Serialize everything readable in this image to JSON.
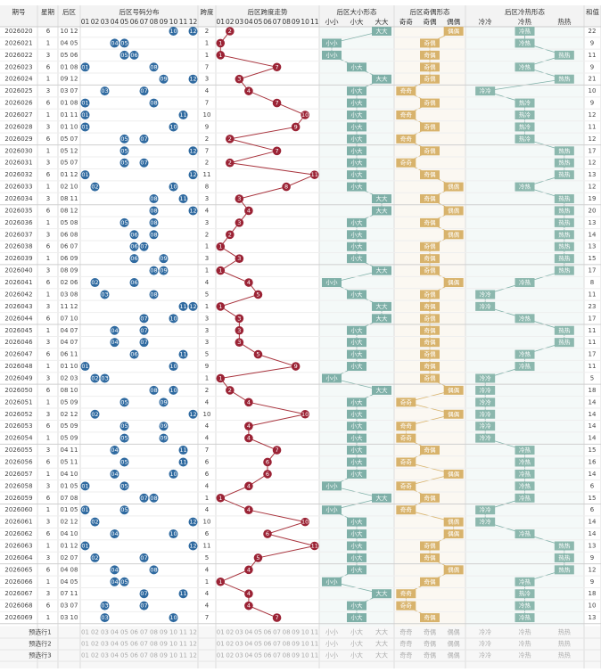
{
  "header": {
    "row1": [
      "期号",
      "星期",
      "后区",
      "后区号码分布",
      "跨度",
      "后区跨度走势",
      "后区大小形态",
      "后区奇偶形态",
      "后区冷热形态",
      "和值"
    ],
    "dist_cols": [
      "01",
      "02",
      "03",
      "04",
      "05",
      "06",
      "07",
      "08",
      "09",
      "10",
      "11",
      "12"
    ],
    "span_cols": [
      "01",
      "02",
      "03",
      "04",
      "05",
      "06",
      "07",
      "08",
      "09",
      "10",
      "11"
    ],
    "size_cols": [
      "小小",
      "小大",
      "大大"
    ],
    "parity_cols": [
      "奇奇",
      "奇偶",
      "偶偶"
    ],
    "temp_cols": [
      "冷冷",
      "冷热",
      "热热"
    ]
  },
  "rows": [
    {
      "period": "2026020",
      "weekday": 6,
      "back": [
        "10",
        "12"
      ],
      "span": 2,
      "size": "大大",
      "parity": "偶偶",
      "temp": "冷热",
      "sum": 22
    },
    {
      "period": "2026021",
      "weekday": 1,
      "back": [
        "04",
        "05"
      ],
      "span": 1,
      "size": "小小",
      "parity": "奇偶",
      "temp": "冷热",
      "sum": 9
    },
    {
      "period": "2026022",
      "weekday": 3,
      "back": [
        "05",
        "06"
      ],
      "span": 1,
      "size": "小小",
      "parity": "奇偶",
      "temp": "热热",
      "sum": 11
    },
    {
      "period": "2026023",
      "weekday": 6,
      "back": [
        "01",
        "08"
      ],
      "span": 7,
      "size": "小大",
      "parity": "奇偶",
      "temp": "冷热",
      "sum": 9
    },
    {
      "period": "2026024",
      "weekday": 1,
      "back": [
        "09",
        "12"
      ],
      "span": 3,
      "size": "大大",
      "parity": "奇偶",
      "temp": "热热",
      "sum": 21
    },
    {
      "period": "2026025",
      "weekday": 3,
      "back": [
        "03",
        "07"
      ],
      "span": 4,
      "size": "小大",
      "parity": "奇奇",
      "temp": "冷冷",
      "sum": 10
    },
    {
      "period": "2026026",
      "weekday": 6,
      "back": [
        "01",
        "08"
      ],
      "span": 7,
      "size": "小大",
      "parity": "奇偶",
      "temp": "热冷",
      "sum": 9
    },
    {
      "period": "2026027",
      "weekday": 1,
      "back": [
        "01",
        "11"
      ],
      "span": 10,
      "size": "小大",
      "parity": "奇奇",
      "temp": "热冷",
      "sum": 12
    },
    {
      "period": "2026028",
      "weekday": 3,
      "back": [
        "01",
        "10"
      ],
      "span": 9,
      "size": "小大",
      "parity": "奇偶",
      "temp": "热冷",
      "sum": 11
    },
    {
      "period": "2026029",
      "weekday": 6,
      "back": [
        "05",
        "07"
      ],
      "span": 2,
      "size": "小大",
      "parity": "奇奇",
      "temp": "热冷",
      "sum": 12
    },
    {
      "period": "2026030",
      "weekday": 1,
      "back": [
        "05",
        "12"
      ],
      "span": 7,
      "size": "小大",
      "parity": "奇偶",
      "temp": "热热",
      "sum": 17
    },
    {
      "period": "2026031",
      "weekday": 3,
      "back": [
        "05",
        "07"
      ],
      "span": 2,
      "size": "小大",
      "parity": "奇奇",
      "temp": "热热",
      "sum": 12
    },
    {
      "period": "2026032",
      "weekday": 6,
      "back": [
        "01",
        "12"
      ],
      "span": 11,
      "size": "小大",
      "parity": "奇偶",
      "temp": "热热",
      "sum": 13
    },
    {
      "period": "2026033",
      "weekday": 1,
      "back": [
        "02",
        "10"
      ],
      "span": 8,
      "size": "小大",
      "parity": "偶偶",
      "temp": "冷热",
      "sum": 12
    },
    {
      "period": "2026034",
      "weekday": 3,
      "back": [
        "08",
        "11"
      ],
      "span": 3,
      "size": "大大",
      "parity": "奇偶",
      "temp": "热热",
      "sum": 19
    },
    {
      "period": "2026035",
      "weekday": 6,
      "back": [
        "08",
        "12"
      ],
      "span": 4,
      "size": "大大",
      "parity": "偶偶",
      "temp": "热热",
      "sum": 20
    },
    {
      "period": "2026036",
      "weekday": 1,
      "back": [
        "05",
        "08"
      ],
      "span": 3,
      "size": "小大",
      "parity": "奇偶",
      "temp": "热热",
      "sum": 13
    },
    {
      "period": "2026037",
      "weekday": 3,
      "back": [
        "06",
        "08"
      ],
      "span": 2,
      "size": "小大",
      "parity": "偶偶",
      "temp": "热热",
      "sum": 14
    },
    {
      "period": "2026038",
      "weekday": 6,
      "back": [
        "06",
        "07"
      ],
      "span": 1,
      "size": "小大",
      "parity": "奇偶",
      "temp": "热热",
      "sum": 13
    },
    {
      "period": "2026039",
      "weekday": 1,
      "back": [
        "06",
        "09"
      ],
      "span": 3,
      "size": "小大",
      "parity": "奇偶",
      "temp": "热热",
      "sum": 15
    },
    {
      "period": "2026040",
      "weekday": 3,
      "back": [
        "08",
        "09"
      ],
      "span": 1,
      "size": "大大",
      "parity": "奇偶",
      "temp": "热热",
      "sum": 17
    },
    {
      "period": "2026041",
      "weekday": 6,
      "back": [
        "02",
        "06"
      ],
      "span": 4,
      "size": "小小",
      "parity": "偶偶",
      "temp": "冷热",
      "sum": 8
    },
    {
      "period": "2026042",
      "weekday": 1,
      "back": [
        "03",
        "08"
      ],
      "span": 5,
      "size": "小大",
      "parity": "奇偶",
      "temp": "冷冷",
      "sum": 11
    },
    {
      "period": "2026043",
      "weekday": 3,
      "back": [
        "11",
        "12"
      ],
      "span": 1,
      "size": "大大",
      "parity": "奇偶",
      "temp": "冷冷",
      "sum": 23
    },
    {
      "period": "2026044",
      "weekday": 6,
      "back": [
        "07",
        "10"
      ],
      "span": 3,
      "size": "大大",
      "parity": "奇偶",
      "temp": "冷热",
      "sum": 17
    },
    {
      "period": "2026045",
      "weekday": 1,
      "back": [
        "04",
        "07"
      ],
      "span": 3,
      "size": "小大",
      "parity": "奇偶",
      "temp": "热热",
      "sum": 11
    },
    {
      "period": "2026046",
      "weekday": 3,
      "back": [
        "04",
        "07"
      ],
      "span": 3,
      "size": "小大",
      "parity": "奇偶",
      "temp": "热热",
      "sum": 11
    },
    {
      "period": "2026047",
      "weekday": 6,
      "back": [
        "06",
        "11"
      ],
      "span": 5,
      "size": "小大",
      "parity": "奇偶",
      "temp": "冷热",
      "sum": 17
    },
    {
      "period": "2026048",
      "weekday": 1,
      "back": [
        "01",
        "10"
      ],
      "span": 9,
      "size": "小大",
      "parity": "奇偶",
      "temp": "冷热",
      "sum": 11
    },
    {
      "period": "2026049",
      "weekday": 3,
      "back": [
        "02",
        "03"
      ],
      "span": 1,
      "size": "小小",
      "parity": "奇偶",
      "temp": "冷冷",
      "sum": 5
    },
    {
      "period": "2026050",
      "weekday": 6,
      "back": [
        "08",
        "10"
      ],
      "span": 2,
      "size": "大大",
      "parity": "偶偶",
      "temp": "冷冷",
      "sum": 18
    },
    {
      "period": "2026051",
      "weekday": 1,
      "back": [
        "05",
        "09"
      ],
      "span": 4,
      "size": "小大",
      "parity": "奇奇",
      "temp": "冷冷",
      "sum": 14
    },
    {
      "period": "2026052",
      "weekday": 3,
      "back": [
        "02",
        "12"
      ],
      "span": 10,
      "size": "小大",
      "parity": "偶偶",
      "temp": "冷冷",
      "sum": 14
    },
    {
      "period": "2026053",
      "weekday": 6,
      "back": [
        "05",
        "09"
      ],
      "span": 4,
      "size": "小大",
      "parity": "奇奇",
      "temp": "冷冷",
      "sum": 14
    },
    {
      "period": "2026054",
      "weekday": 1,
      "back": [
        "05",
        "09"
      ],
      "span": 4,
      "size": "小大",
      "parity": "奇奇",
      "temp": "冷冷",
      "sum": 14
    },
    {
      "period": "2026055",
      "weekday": 3,
      "back": [
        "04",
        "11"
      ],
      "span": 7,
      "size": "小大",
      "parity": "奇偶",
      "temp": "冷热",
      "sum": 15
    },
    {
      "period": "2026056",
      "weekday": 6,
      "back": [
        "05",
        "11"
      ],
      "span": 6,
      "size": "小大",
      "parity": "奇奇",
      "temp": "冷热",
      "sum": 16
    },
    {
      "period": "2026057",
      "weekday": 1,
      "back": [
        "04",
        "10"
      ],
      "span": 6,
      "size": "小大",
      "parity": "偶偶",
      "temp": "冷热",
      "sum": 14
    },
    {
      "period": "2026058",
      "weekday": 3,
      "back": [
        "01",
        "05"
      ],
      "span": 4,
      "size": "小小",
      "parity": "奇奇",
      "temp": "冷热",
      "sum": 6
    },
    {
      "period": "2026059",
      "weekday": 6,
      "back": [
        "07",
        "08"
      ],
      "span": 1,
      "size": "大大",
      "parity": "奇偶",
      "temp": "冷热",
      "sum": 15
    },
    {
      "period": "2026060",
      "weekday": 1,
      "back": [
        "01",
        "05"
      ],
      "span": 4,
      "size": "小小",
      "parity": "奇奇",
      "temp": "冷冷",
      "sum": 6
    },
    {
      "period": "2026061",
      "weekday": 3,
      "back": [
        "02",
        "12"
      ],
      "span": 10,
      "size": "小大",
      "parity": "偶偶",
      "temp": "冷冷",
      "sum": 14
    },
    {
      "period": "2026062",
      "weekday": 6,
      "back": [
        "04",
        "10"
      ],
      "span": 6,
      "size": "小大",
      "parity": "偶偶",
      "temp": "冷热",
      "sum": 14
    },
    {
      "period": "2026063",
      "weekday": 1,
      "back": [
        "01",
        "12"
      ],
      "span": 11,
      "size": "小大",
      "parity": "奇偶",
      "temp": "热热",
      "sum": 13
    },
    {
      "period": "2026064",
      "weekday": 3,
      "back": [
        "02",
        "07"
      ],
      "span": 5,
      "size": "小大",
      "parity": "奇偶",
      "temp": "热热",
      "sum": 9
    },
    {
      "period": "2026065",
      "weekday": 6,
      "back": [
        "04",
        "08"
      ],
      "span": 4,
      "size": "小大",
      "parity": "偶偶",
      "temp": "热热",
      "sum": 12
    },
    {
      "period": "2026066",
      "weekday": 1,
      "back": [
        "04",
        "05"
      ],
      "span": 1,
      "size": "小小",
      "parity": "奇偶",
      "temp": "冷热",
      "sum": 9
    },
    {
      "period": "2026067",
      "weekday": 3,
      "back": [
        "07",
        "11"
      ],
      "span": 4,
      "size": "大大",
      "parity": "奇奇",
      "temp": "热冷",
      "sum": 18
    },
    {
      "period": "2026068",
      "weekday": 6,
      "back": [
        "03",
        "07"
      ],
      "span": 4,
      "size": "小大",
      "parity": "奇奇",
      "temp": "冷热",
      "sum": 10
    },
    {
      "period": "2026069",
      "weekday": 1,
      "back": [
        "03",
        "10"
      ],
      "span": 7,
      "size": "小大",
      "parity": "奇偶",
      "temp": "冷热",
      "sum": 13
    }
  ],
  "footer": [
    "预选行1",
    "预选行2",
    "预选行3"
  ]
}
